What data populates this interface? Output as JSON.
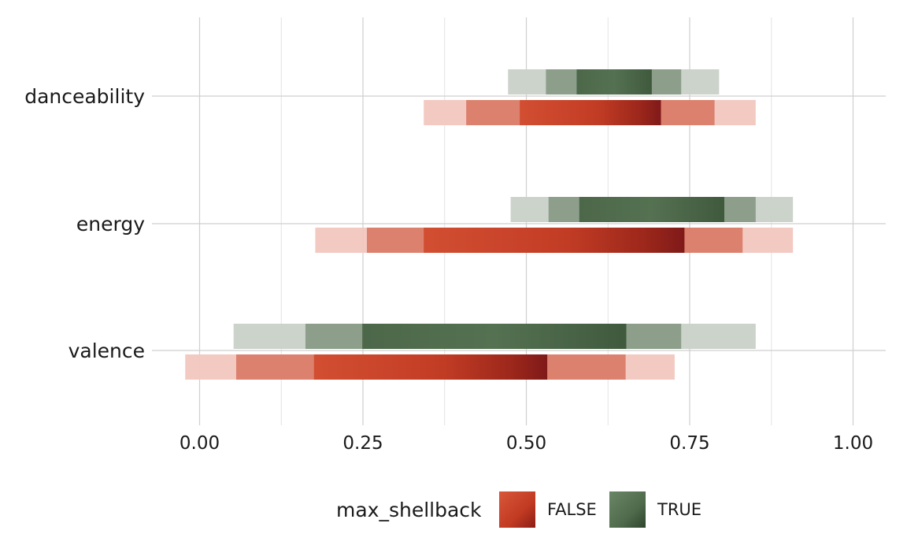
{
  "chart_data": {
    "type": "bar",
    "subtype": "interval-eye (nested quantile intervals)",
    "xlim": [
      -0.05,
      1.05
    ],
    "x_ticks": [
      0.0,
      0.25,
      0.5,
      0.75,
      1.0
    ],
    "x_tick_labels": [
      "0.00",
      "0.25",
      "0.50",
      "0.75",
      "1.00"
    ],
    "grid": true,
    "categories": [
      "danceability",
      "energy",
      "valence"
    ],
    "legend": {
      "title": "max_shellback",
      "position": "bottom",
      "entries": [
        {
          "label": "FALSE",
          "color": "#c8452a"
        },
        {
          "label": "TRUE",
          "color": "#4f6b4c"
        }
      ]
    },
    "series": [
      {
        "name": "TRUE",
        "color_dark": "#3f5a3d",
        "color_mid": "#5a7558",
        "color_light": "#c9d1c8",
        "intervals": {
          "danceability": {
            "outer": [
              0.472,
              0.795
            ],
            "middle": [
              0.53,
              0.737
            ],
            "inner": [
              0.577,
              0.692
            ]
          },
          "energy": {
            "outer": [
              0.476,
              0.908
            ],
            "middle": [
              0.534,
              0.851
            ],
            "inner": [
              0.581,
              0.803
            ]
          },
          "valence": {
            "outer": [
              0.052,
              0.851
            ],
            "middle": [
              0.162,
              0.737
            ],
            "inner": [
              0.249,
              0.653
            ]
          }
        }
      },
      {
        "name": "FALSE",
        "color_dark": "#7c1818",
        "color_mid": "#c8452a",
        "color_light": "#f2c7bf",
        "intervals": {
          "danceability": {
            "outer": [
              0.343,
              0.851
            ],
            "middle": [
              0.408,
              0.788
            ],
            "inner": [
              0.49,
              0.706
            ]
          },
          "energy": {
            "outer": [
              0.177,
              0.908
            ],
            "middle": [
              0.256,
              0.831
            ],
            "inner": [
              0.343,
              0.742
            ]
          },
          "valence": {
            "outer": [
              -0.022,
              0.727
            ],
            "middle": [
              0.056,
              0.652
            ],
            "inner": [
              0.175,
              0.532
            ]
          }
        }
      }
    ]
  }
}
